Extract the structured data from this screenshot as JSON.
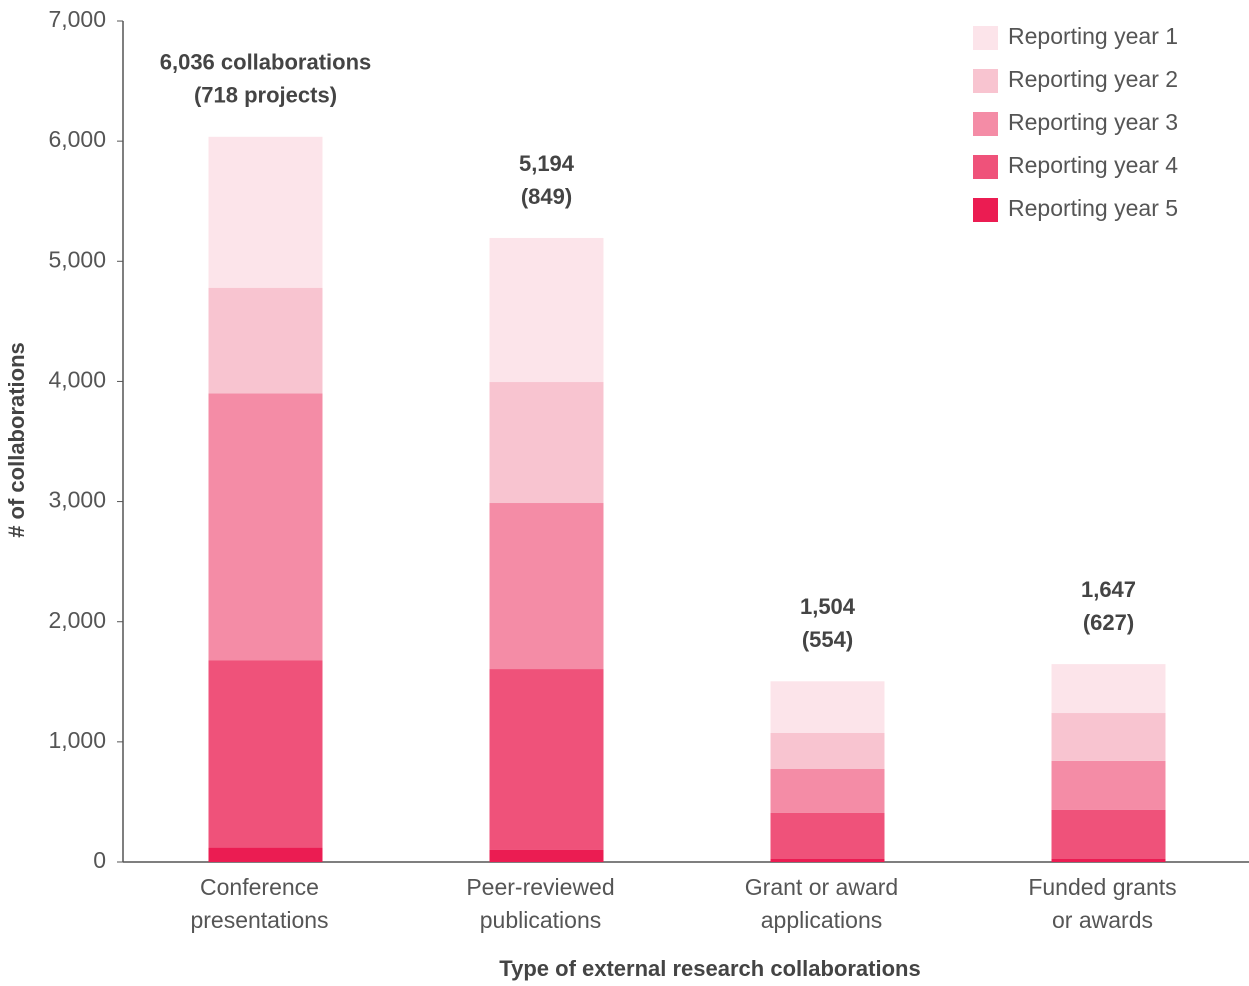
{
  "chart_data": {
    "type": "stacked_bar",
    "xlabel": "Type of external research collaborations",
    "ylabel": "# of collaborations",
    "categories": [
      "Conference\npresentations",
      "Peer-reviewed\npublications",
      "Grant or award\napplications",
      "Funded grants\nor awards"
    ],
    "total_labels": [
      "6,036 collaborations",
      "5,194",
      "1,504",
      "1,647"
    ],
    "project_labels": [
      "(718 projects)",
      "(849)",
      "(554)",
      "(627)"
    ],
    "series": [
      {
        "name": "Reporting year 5",
        "color": "#eb1c52",
        "values": [
          120,
          100,
          25,
          25
        ]
      },
      {
        "name": "Reporting year 4",
        "color": "#ef527a",
        "values": [
          1560,
          1506,
          383,
          408
        ]
      },
      {
        "name": "Reporting year 3",
        "color": "#f48ca6",
        "values": [
          2220,
          1382,
          366,
          408
        ]
      },
      {
        "name": "Reporting year 2",
        "color": "#f8c4d0",
        "values": [
          880,
          1007,
          300,
          399
        ]
      },
      {
        "name": "Reporting year 1",
        "color": "#fce4ea",
        "values": [
          1256,
          1199,
          430,
          407
        ]
      }
    ],
    "ylim": [
      0,
      7000
    ],
    "yticks": [
      0,
      {
        "value": 1000,
        "label": "1,000"
      },
      {
        "value": 2000,
        "label": "2,000"
      },
      {
        "value": 3000,
        "label": "3,000"
      },
      {
        "value": 4000,
        "label": "4,000"
      },
      {
        "value": 5000,
        "label": "5,000"
      },
      {
        "value": 6000,
        "label": "6,000"
      },
      {
        "value": 7000,
        "label": "7,000"
      }
    ],
    "legend": "upper right"
  }
}
